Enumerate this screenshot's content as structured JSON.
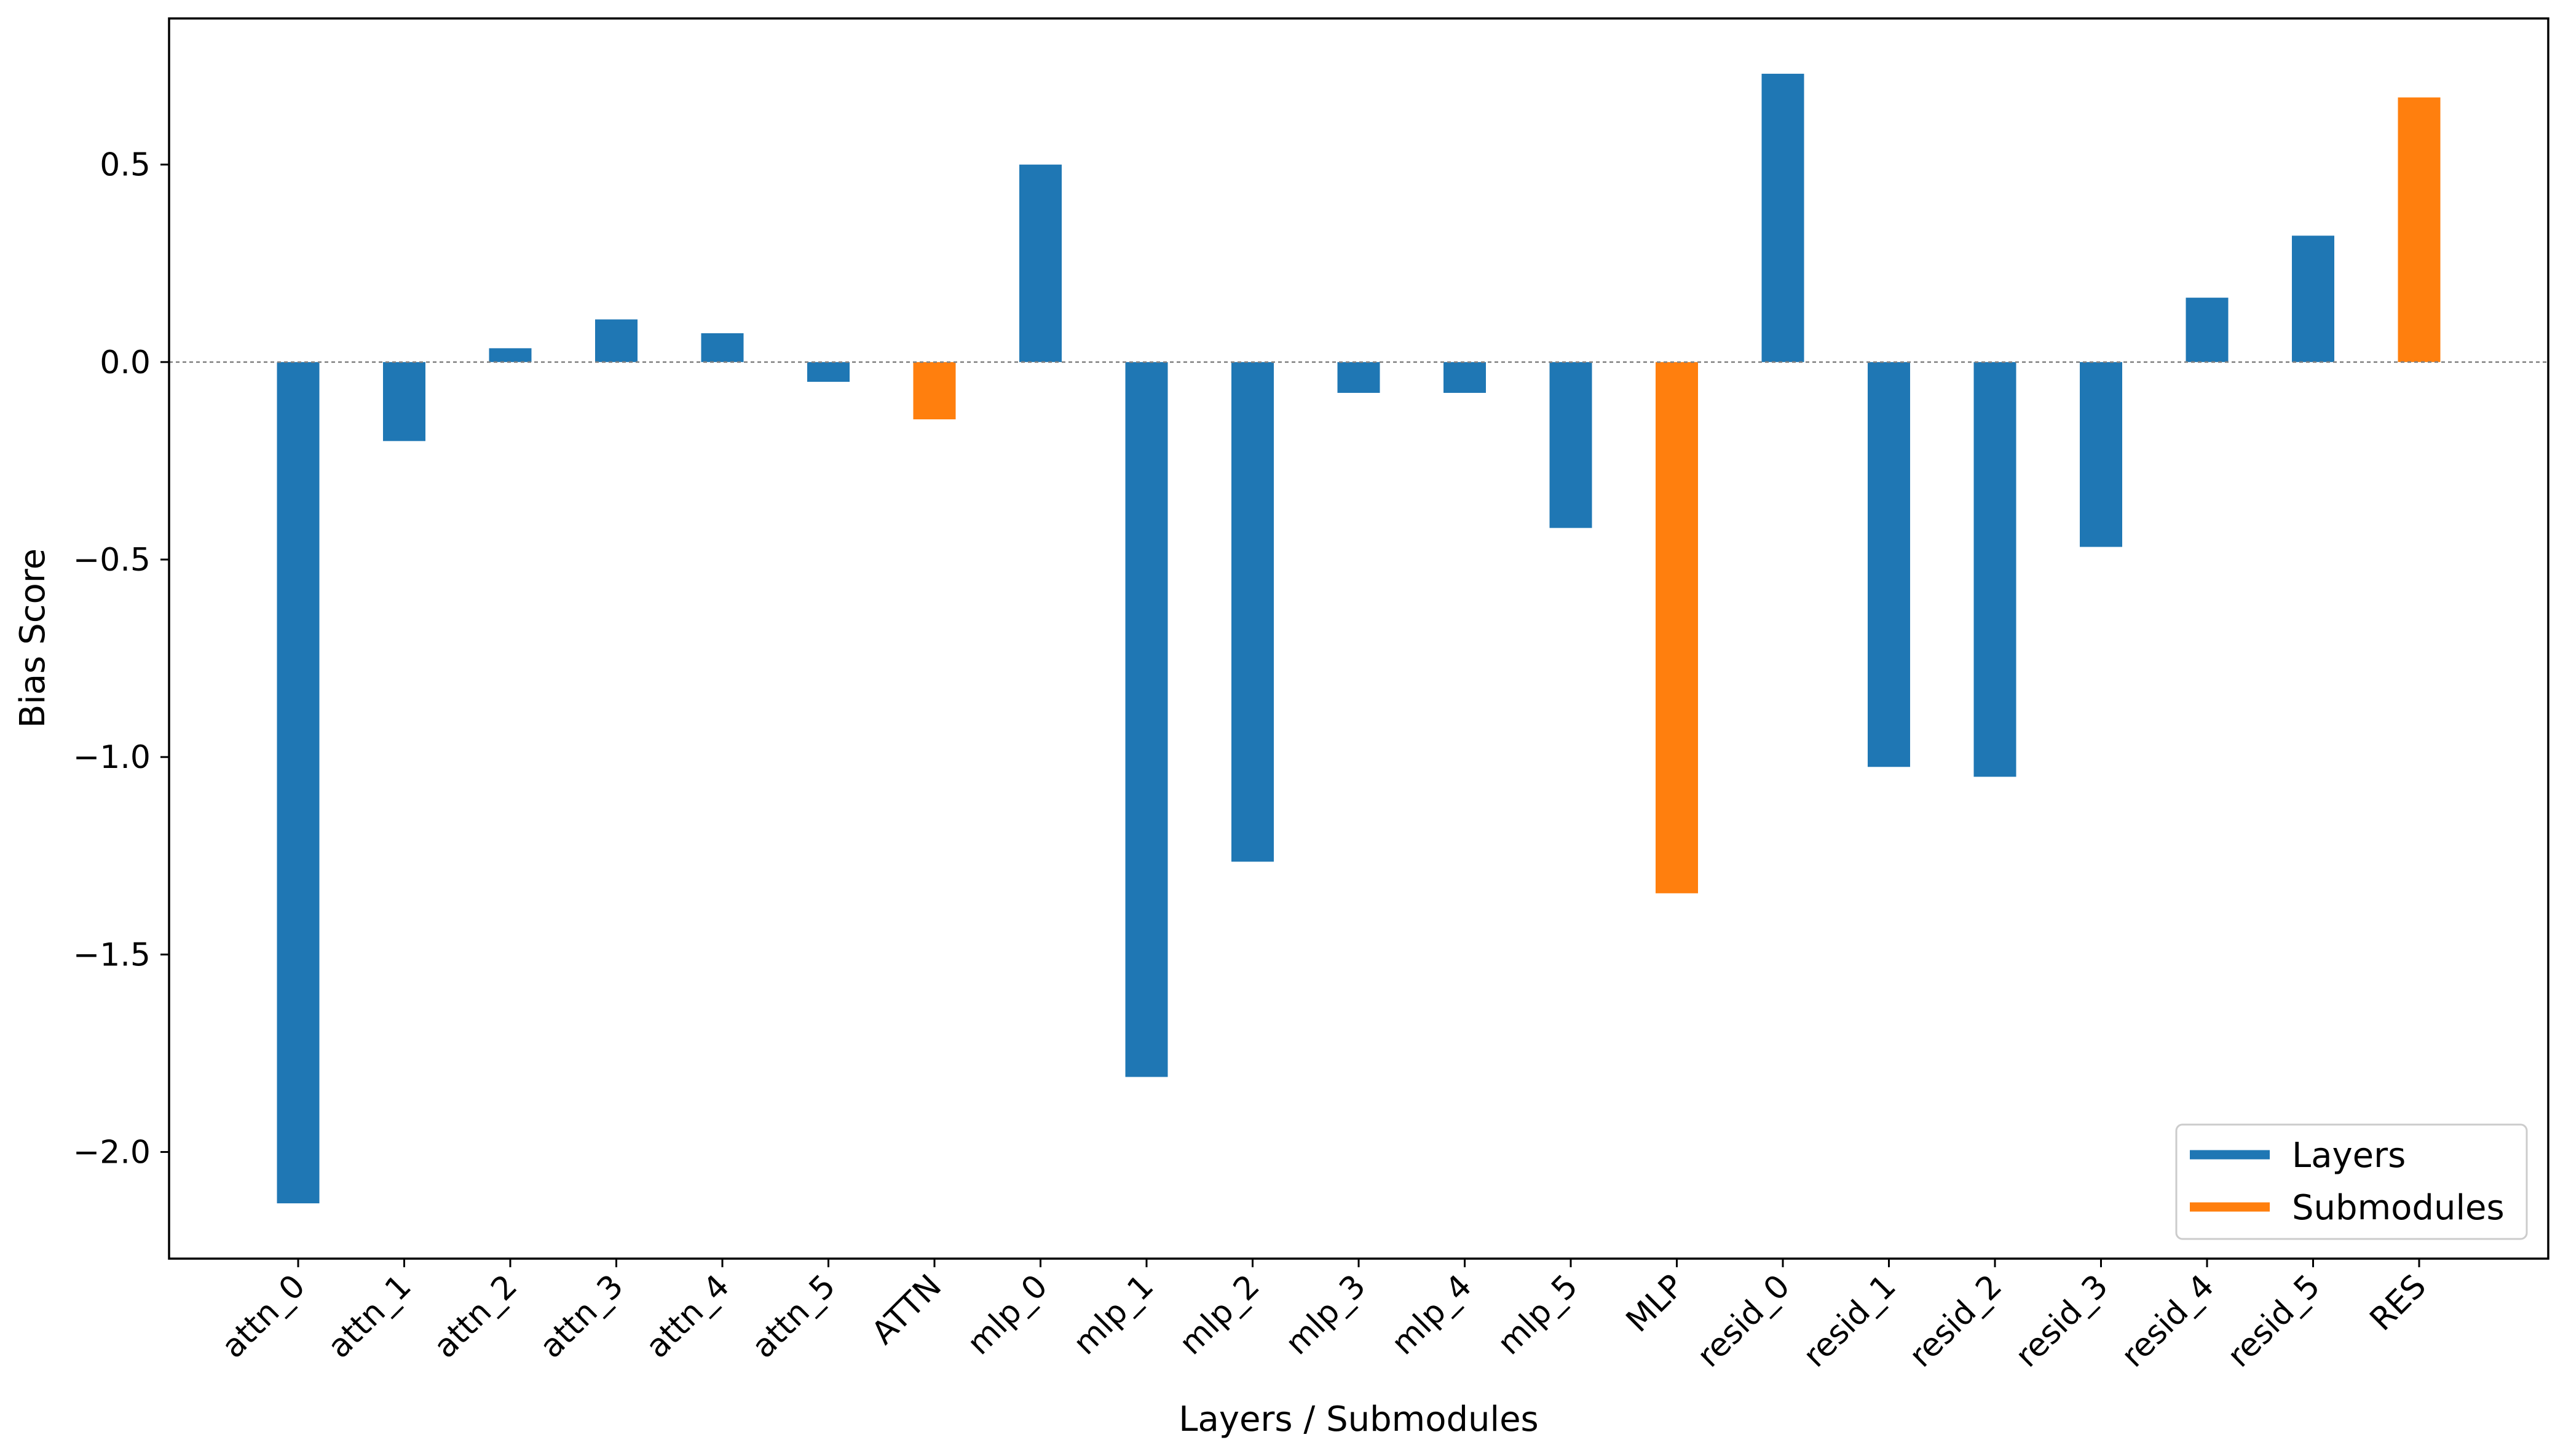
{
  "chart_data": {
    "type": "bar",
    "title": "",
    "xlabel": "Layers / Submodules",
    "ylabel": "Bias Score",
    "ylim": [
      -2.27,
      0.87
    ],
    "yticks": [
      -2.0,
      -1.5,
      -1.0,
      -0.5,
      0.0,
      0.5
    ],
    "ytick_labels": [
      "−2.0",
      "−1.5",
      "−1.0",
      "−0.5",
      "0.0",
      "0.5"
    ],
    "zero_line": true,
    "grid": false,
    "legend_placement": "lower-right",
    "colors": {
      "Layers": "#1f77b4",
      "Submodules": "#ff7f0e"
    },
    "legend": [
      {
        "name": "Layers",
        "group": "Layers"
      },
      {
        "name": "Submodules",
        "group": "Submodules"
      }
    ],
    "categories": [
      "attn_0",
      "attn_1",
      "attn_2",
      "attn_3",
      "attn_4",
      "attn_5",
      "ATTN",
      "mlp_0",
      "mlp_1",
      "mlp_2",
      "mlp_3",
      "mlp_4",
      "mlp_5",
      "MLP",
      "resid_0",
      "resid_1",
      "resid_2",
      "resid_3",
      "resid_4",
      "resid_5",
      "RES"
    ],
    "groups": [
      "Layers",
      "Layers",
      "Layers",
      "Layers",
      "Layers",
      "Layers",
      "Submodules",
      "Layers",
      "Layers",
      "Layers",
      "Layers",
      "Layers",
      "Layers",
      "Submodules",
      "Layers",
      "Layers",
      "Layers",
      "Layers",
      "Layers",
      "Layers",
      "Submodules"
    ],
    "values": [
      -2.13,
      -0.2,
      0.035,
      0.108,
      0.073,
      -0.05,
      -0.145,
      0.5,
      -1.81,
      -1.265,
      -0.078,
      -0.078,
      -0.42,
      -1.345,
      0.73,
      -1.025,
      -1.05,
      -0.468,
      0.163,
      0.32,
      0.67
    ]
  }
}
